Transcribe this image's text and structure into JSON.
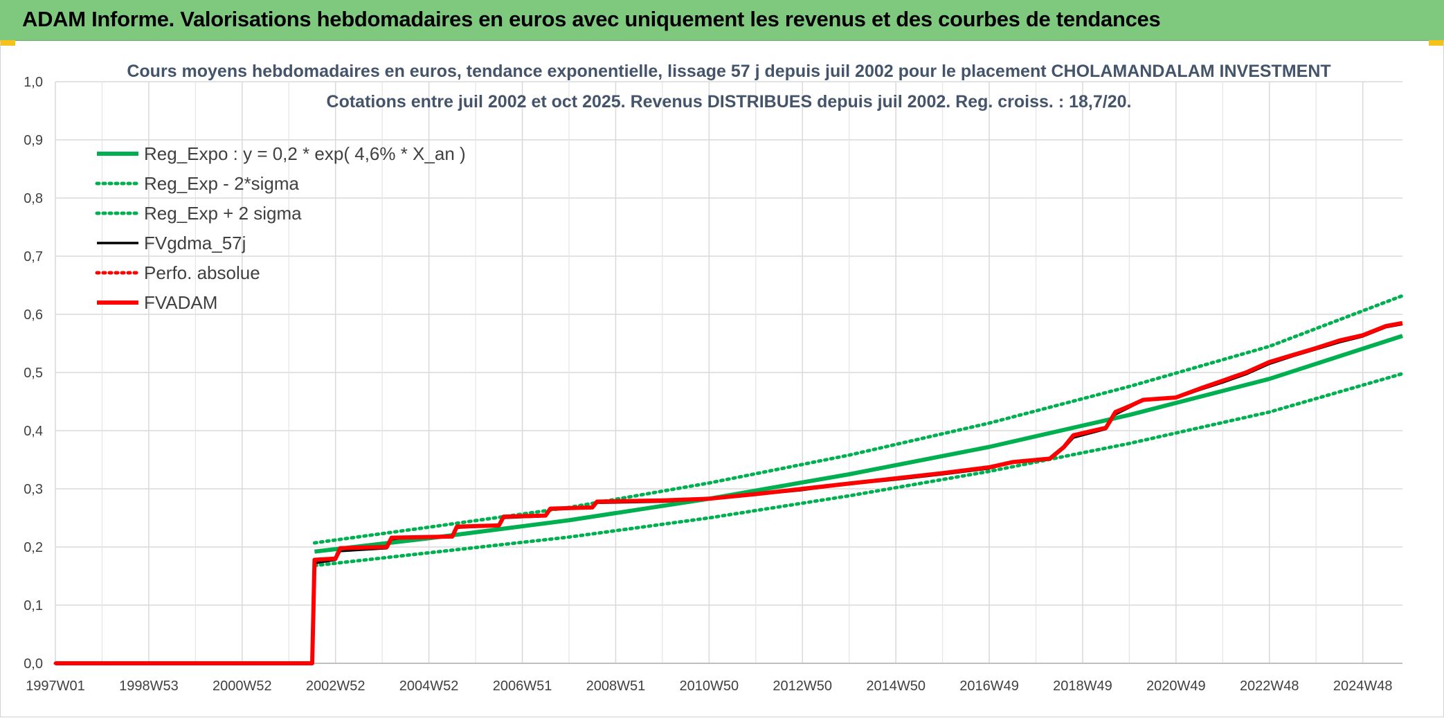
{
  "banner": {
    "title": "ADAM Informe. Valorisations hebdomadaires en euros avec uniquement les revenus et des courbes de tendances"
  },
  "colors": {
    "banner_bg": "#7fc97f",
    "reg": "#00b050",
    "reg_band": "#00b050",
    "fvgdma": "#000000",
    "perfo": "#ff0000",
    "fvadam": "#ff0000"
  },
  "chart_data": {
    "type": "line",
    "title": "Cours moyens hebdomadaires en euros, tendance exponentielle, lissage 57 j depuis juil 2002 pour le placement CHOLAMANDALAM INVESTMENT",
    "subtitle": "Cotations entre juil 2002 et oct 2025. Revenus DISTRIBUES depuis juil 2002. Reg. croiss. : 18,7/20.",
    "xlabel": "",
    "ylabel": "",
    "x_range": [
      1997.0,
      2025.85
    ],
    "ylim": [
      0,
      1.0
    ],
    "y_ticks": [
      "0,0",
      "0,1",
      "0,2",
      "0,3",
      "0,4",
      "0,5",
      "0,6",
      "0,7",
      "0,8",
      "0,9",
      "1,0"
    ],
    "x_ticks": [
      {
        "label": "1997W01",
        "x": 1997.0
      },
      {
        "label": "1998W53",
        "x": 1999.0
      },
      {
        "label": "2000W52",
        "x": 2001.0
      },
      {
        "label": "2002W52",
        "x": 2003.0
      },
      {
        "label": "2004W52",
        "x": 2005.0
      },
      {
        "label": "2006W51",
        "x": 2007.0
      },
      {
        "label": "2008W51",
        "x": 2009.0
      },
      {
        "label": "2010W50",
        "x": 2011.0
      },
      {
        "label": "2012W50",
        "x": 2013.0
      },
      {
        "label": "2014W50",
        "x": 2015.0
      },
      {
        "label": "2016W49",
        "x": 2017.0
      },
      {
        "label": "2018W49",
        "x": 2019.0
      },
      {
        "label": "2020W49",
        "x": 2021.0
      },
      {
        "label": "2022W48",
        "x": 2023.0
      },
      {
        "label": "2024W48",
        "x": 2025.0
      }
    ],
    "grid": true,
    "legend_position": "top-left",
    "series": [
      {
        "name": "Reg_Expo : y = 0,2 * exp( 4,6% *  X_an )",
        "style": "solid-thick",
        "color": "#00b050",
        "points": [
          [
            2002.55,
            0.192
          ],
          [
            2005,
            0.215
          ],
          [
            2008,
            0.246
          ],
          [
            2011,
            0.283
          ],
          [
            2014,
            0.325
          ],
          [
            2017,
            0.372
          ],
          [
            2020,
            0.427
          ],
          [
            2023,
            0.489
          ],
          [
            2025.85,
            0.563
          ]
        ]
      },
      {
        "name": "Reg_Exp - 2*sigma",
        "style": "dotted",
        "color": "#00b050",
        "points": [
          [
            2002.55,
            0.168
          ],
          [
            2005,
            0.19
          ],
          [
            2008,
            0.217
          ],
          [
            2011,
            0.25
          ],
          [
            2014,
            0.288
          ],
          [
            2017,
            0.33
          ],
          [
            2020,
            0.378
          ],
          [
            2023,
            0.432
          ],
          [
            2025.85,
            0.498
          ]
        ]
      },
      {
        "name": "Reg_Exp + 2 sigma",
        "style": "dotted",
        "color": "#00b050",
        "points": [
          [
            2002.55,
            0.207
          ],
          [
            2005,
            0.234
          ],
          [
            2008,
            0.268
          ],
          [
            2011,
            0.31
          ],
          [
            2014,
            0.358
          ],
          [
            2017,
            0.413
          ],
          [
            2020,
            0.476
          ],
          [
            2023,
            0.545
          ],
          [
            2025.85,
            0.632
          ]
        ]
      },
      {
        "name": "FVgdma_57j",
        "style": "solid",
        "color": "#000000",
        "points": [
          [
            1997.0,
            0.0
          ],
          [
            2002.5,
            0.0
          ],
          [
            2002.55,
            0.172
          ],
          [
            2003.0,
            0.178
          ],
          [
            2003.1,
            0.193
          ],
          [
            2004.1,
            0.198
          ],
          [
            2004.2,
            0.213
          ],
          [
            2005.5,
            0.218
          ],
          [
            2005.6,
            0.233
          ],
          [
            2006.5,
            0.237
          ],
          [
            2006.6,
            0.25
          ],
          [
            2007.5,
            0.253
          ],
          [
            2007.6,
            0.264
          ],
          [
            2008.5,
            0.268
          ],
          [
            2008.6,
            0.276
          ],
          [
            2010,
            0.278
          ],
          [
            2011,
            0.282
          ],
          [
            2012,
            0.29
          ],
          [
            2013,
            0.298
          ],
          [
            2014,
            0.308
          ],
          [
            2015,
            0.316
          ],
          [
            2016,
            0.325
          ],
          [
            2017,
            0.335
          ],
          [
            2017.5,
            0.345
          ],
          [
            2018.3,
            0.35
          ],
          [
            2018.6,
            0.37
          ],
          [
            2018.8,
            0.388
          ],
          [
            2019.5,
            0.403
          ],
          [
            2019.7,
            0.428
          ],
          [
            2020.0,
            0.44
          ],
          [
            2020.3,
            0.452
          ],
          [
            2021.0,
            0.456
          ],
          [
            2021.5,
            0.47
          ],
          [
            2022.0,
            0.483
          ],
          [
            2022.5,
            0.497
          ],
          [
            2023.0,
            0.515
          ],
          [
            2023.5,
            0.528
          ],
          [
            2024.0,
            0.54
          ],
          [
            2024.5,
            0.552
          ],
          [
            2025.0,
            0.562
          ],
          [
            2025.5,
            0.578
          ],
          [
            2025.85,
            0.583
          ]
        ]
      },
      {
        "name": "Perfo. absolue",
        "style": "dotted",
        "color": "#ff0000",
        "points": [
          [
            1997.0,
            0.0
          ],
          [
            2002.5,
            0.0
          ]
        ]
      },
      {
        "name": "FVADAM",
        "style": "solid-thick",
        "color": "#ff0000",
        "points": [
          [
            1997.0,
            0.0
          ],
          [
            2002.5,
            0.0
          ],
          [
            2002.55,
            0.178
          ],
          [
            2003.0,
            0.18
          ],
          [
            2003.1,
            0.198
          ],
          [
            2004.1,
            0.2
          ],
          [
            2004.2,
            0.216
          ],
          [
            2005.5,
            0.218
          ],
          [
            2005.6,
            0.235
          ],
          [
            2006.5,
            0.237
          ],
          [
            2006.6,
            0.252
          ],
          [
            2007.5,
            0.254
          ],
          [
            2007.6,
            0.266
          ],
          [
            2008.5,
            0.268
          ],
          [
            2008.6,
            0.278
          ],
          [
            2010,
            0.28
          ],
          [
            2011,
            0.283
          ],
          [
            2012,
            0.291
          ],
          [
            2013,
            0.3
          ],
          [
            2014,
            0.309
          ],
          [
            2015,
            0.318
          ],
          [
            2016,
            0.327
          ],
          [
            2017,
            0.337
          ],
          [
            2017.5,
            0.346
          ],
          [
            2018.3,
            0.352
          ],
          [
            2018.6,
            0.372
          ],
          [
            2018.8,
            0.392
          ],
          [
            2019.5,
            0.405
          ],
          [
            2019.7,
            0.432
          ],
          [
            2020.0,
            0.442
          ],
          [
            2020.3,
            0.453
          ],
          [
            2021.0,
            0.457
          ],
          [
            2021.5,
            0.472
          ],
          [
            2022.0,
            0.486
          ],
          [
            2022.5,
            0.5
          ],
          [
            2023.0,
            0.518
          ],
          [
            2023.5,
            0.53
          ],
          [
            2024.0,
            0.542
          ],
          [
            2024.5,
            0.555
          ],
          [
            2025.0,
            0.564
          ],
          [
            2025.5,
            0.58
          ],
          [
            2025.85,
            0.585
          ]
        ]
      }
    ]
  }
}
